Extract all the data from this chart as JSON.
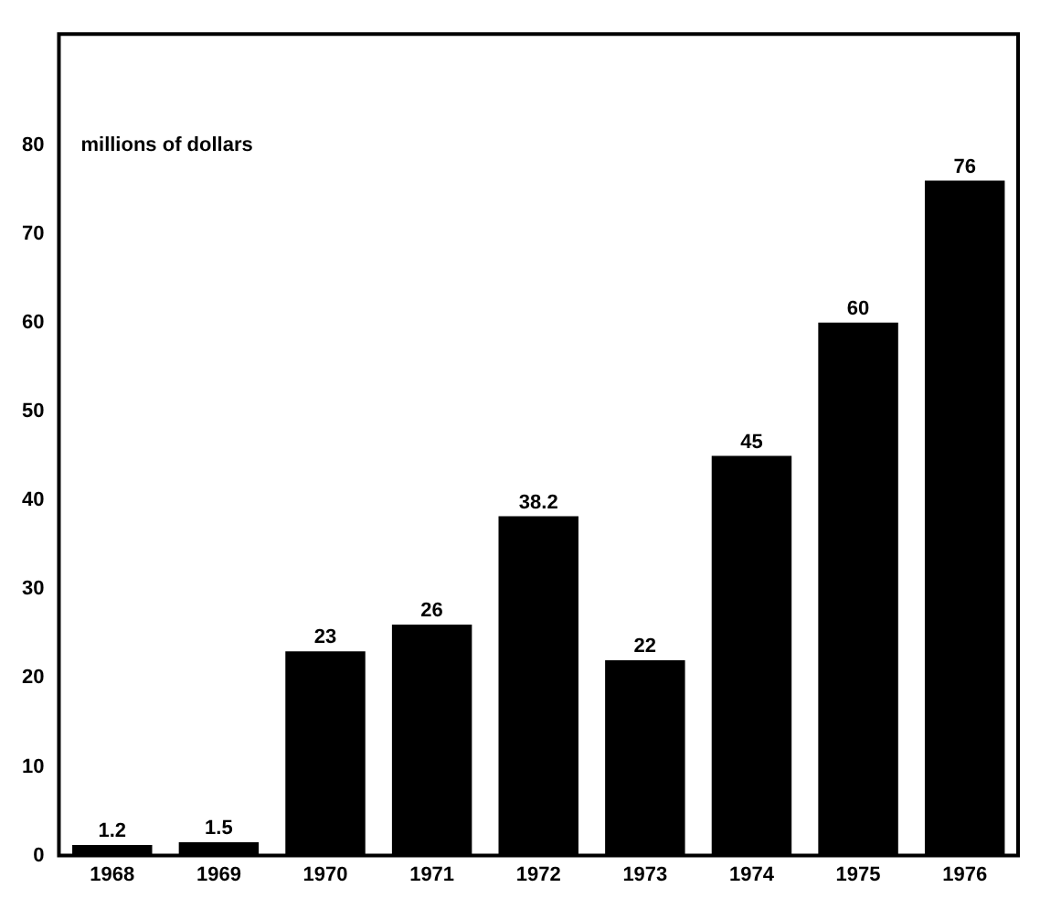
{
  "chart_data": {
    "type": "bar",
    "annotations": [
      "millions of dollars"
    ],
    "categories": [
      "1968",
      "1969",
      "1970",
      "1971",
      "1972",
      "1973",
      "1974",
      "1975",
      "1976"
    ],
    "values": [
      1.2,
      1.5,
      23,
      26,
      38.2,
      22,
      45,
      60,
      76
    ],
    "color": "#000000",
    "ylim": [
      0,
      92.5
    ],
    "yticks": [
      0,
      10,
      20,
      30,
      40,
      50,
      60,
      70,
      80
    ],
    "grid": false,
    "legend": false,
    "data_labels": true
  }
}
